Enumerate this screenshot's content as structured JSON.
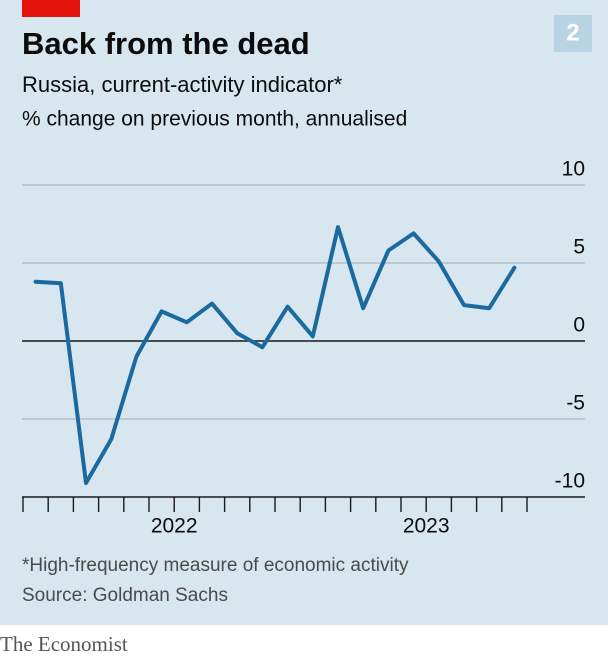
{
  "chart_data": {
    "type": "line",
    "chart_number": "2",
    "title": "Back from the dead",
    "subtitle": "Russia, current-activity indicator*",
    "y_label": "% change on previous month, annualised",
    "categories": [
      null,
      null,
      null,
      null,
      null,
      "2022",
      null,
      null,
      null,
      null,
      null,
      null,
      null,
      null,
      null,
      "2023",
      null,
      null,
      null,
      null
    ],
    "series": [
      {
        "color": "#1a6aa0",
        "values": [
          3.8,
          3.7,
          -9.1,
          -6.3,
          -1.0,
          1.9,
          1.2,
          2.4,
          0.5,
          -0.4,
          2.2,
          0.3,
          7.3,
          2.1,
          5.8,
          6.9,
          5.1,
          2.3,
          2.1,
          4.7
        ]
      }
    ],
    "ylim": [
      -10,
      10
    ],
    "yticks": [
      -10,
      -5,
      0,
      5,
      10
    ],
    "grid": true,
    "footnote": "*High-frequency measure of economic activity",
    "source": "Source: Goldman Sachs"
  },
  "brand": "The Economist"
}
